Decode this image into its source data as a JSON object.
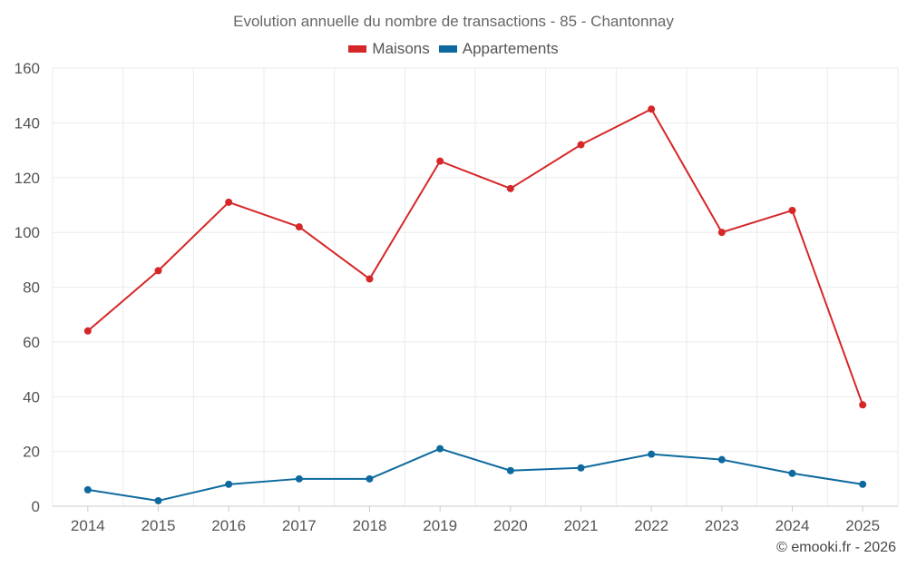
{
  "chart_data": {
    "type": "line",
    "title": "Evolution annuelle du nombre de transactions - 85 - Chantonnay",
    "xlabel": "",
    "ylabel": "",
    "ylim": [
      0,
      160
    ],
    "yticks": [
      0,
      20,
      40,
      60,
      80,
      100,
      120,
      140,
      160
    ],
    "grid": true,
    "legend_position": "top-center",
    "categories": [
      "2014",
      "2015",
      "2016",
      "2017",
      "2018",
      "2019",
      "2020",
      "2021",
      "2022",
      "2023",
      "2024",
      "2025"
    ],
    "series": [
      {
        "name": "Maisons",
        "color": "#d62728",
        "values": [
          64,
          86,
          111,
          102,
          83,
          126,
          116,
          132,
          145,
          100,
          108,
          37
        ]
      },
      {
        "name": "Appartements",
        "color": "#0e6a9e",
        "values": [
          6,
          2,
          8,
          10,
          10,
          21,
          13,
          14,
          19,
          17,
          12,
          8
        ]
      }
    ]
  },
  "credit": "© emooki.fr - 2026"
}
